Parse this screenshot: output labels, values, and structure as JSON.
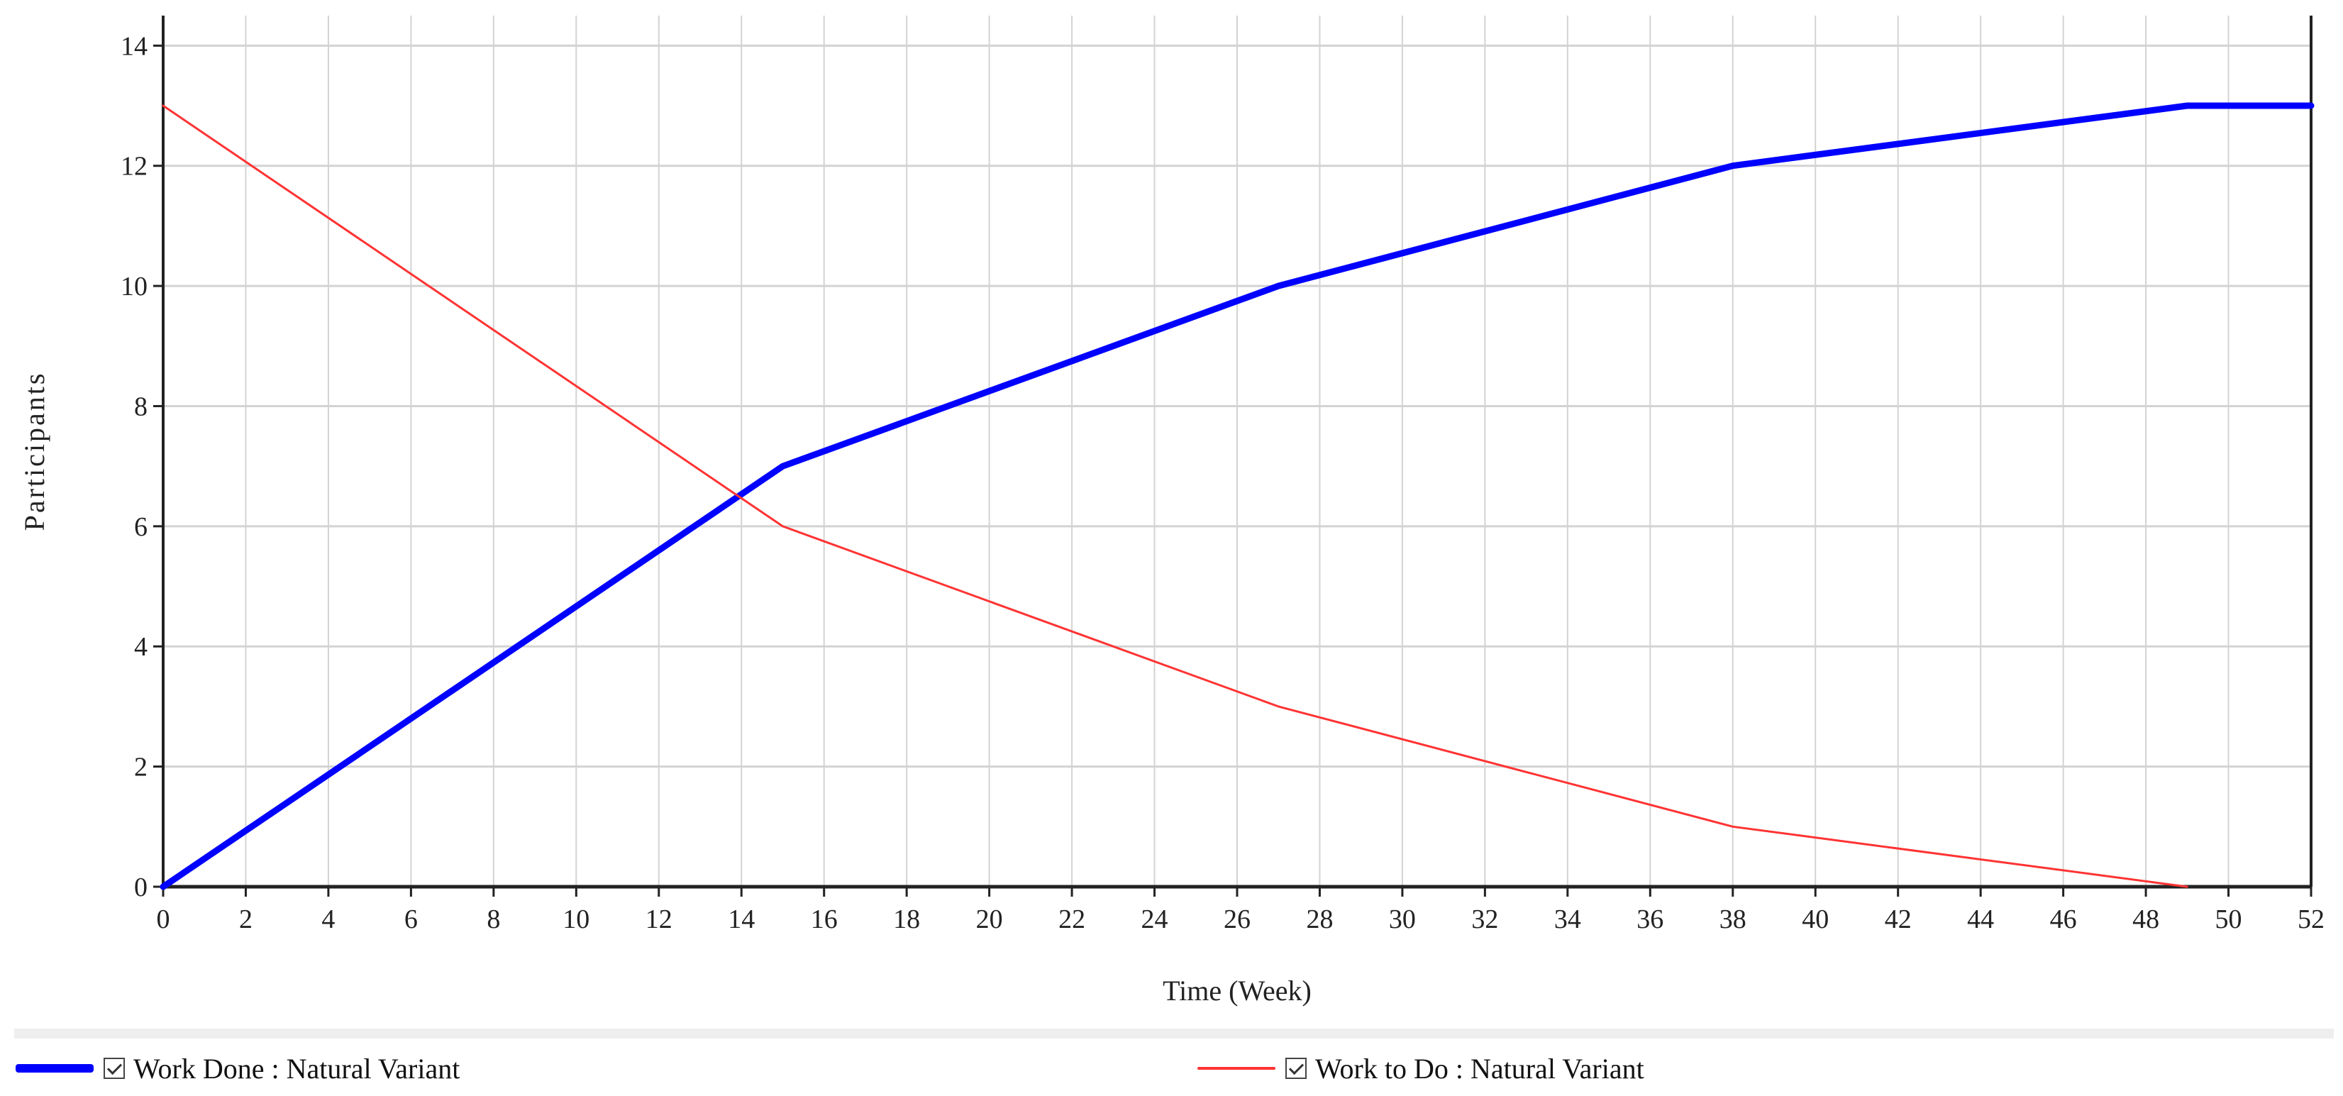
{
  "chart_data": {
    "type": "line",
    "xlabel": "Time (Week)",
    "ylabel": "Participants",
    "xlim": [
      0,
      52
    ],
    "ylim": [
      0,
      14.5
    ],
    "x_ticks": [
      0,
      2,
      4,
      6,
      8,
      10,
      12,
      14,
      16,
      18,
      20,
      22,
      24,
      26,
      28,
      30,
      32,
      34,
      36,
      38,
      40,
      42,
      44,
      46,
      48,
      50,
      52
    ],
    "y_ticks": [
      0,
      2,
      4,
      6,
      8,
      10,
      12,
      14
    ],
    "grid": true,
    "legend_position": "bottom",
    "series": [
      {
        "name": "Work Done : Natural Variant",
        "color": "#0000ff",
        "x": [
          0,
          15,
          27,
          38,
          49,
          52
        ],
        "y": [
          0,
          7,
          10,
          12,
          13,
          13
        ]
      },
      {
        "name": "Work to Do : Natural Variant",
        "color": "#ff3333",
        "x": [
          0,
          15,
          27,
          38,
          49
        ],
        "y": [
          13,
          6,
          3,
          1,
          0
        ]
      }
    ]
  }
}
